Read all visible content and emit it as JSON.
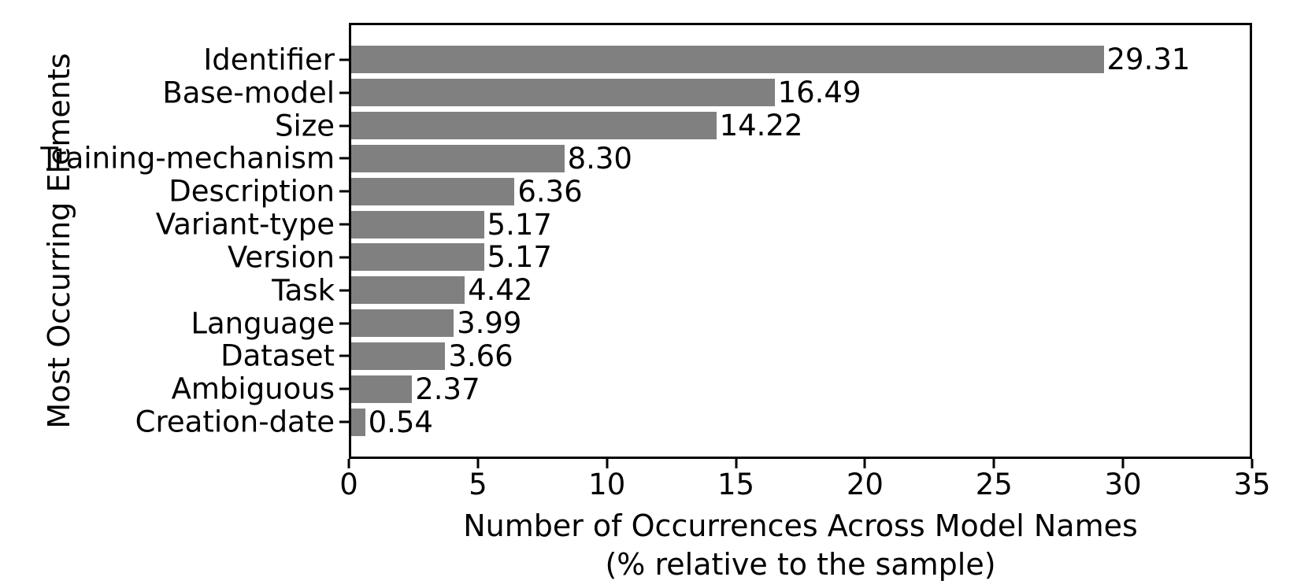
{
  "chart_data": {
    "type": "bar",
    "orientation": "horizontal",
    "title": "",
    "ylabel": "Most Occurring Elements",
    "xlabel_line1": "Number of Occurrences Across Model Names",
    "xlabel_line2": "(% relative to the sample)",
    "categories": [
      "Identifier",
      "Base-model",
      "Size",
      "Training-mechanism",
      "Description",
      "Variant-type",
      "Version",
      "Task",
      "Language",
      "Dataset",
      "Ambiguous",
      "Creation-date"
    ],
    "values": [
      29.31,
      16.49,
      14.22,
      8.3,
      6.36,
      5.17,
      5.17,
      4.42,
      3.99,
      3.66,
      2.37,
      0.54
    ],
    "value_labels": [
      "29.31",
      "16.49",
      "14.22",
      "8.30",
      "6.36",
      "5.17",
      "5.17",
      "4.42",
      "3.99",
      "3.66",
      "2.37",
      "0.54"
    ],
    "xlim": [
      0,
      35
    ],
    "xticks": [
      0,
      5,
      10,
      15,
      20,
      25,
      30,
      35
    ],
    "xtick_labels": [
      "0",
      "5",
      "10",
      "15",
      "20",
      "25",
      "30",
      "35"
    ],
    "grid": false,
    "legend_position": "none",
    "bar_color": "#808080",
    "frame_color": "#000000",
    "text_color": "#000000",
    "background_color": "#ffffff"
  }
}
